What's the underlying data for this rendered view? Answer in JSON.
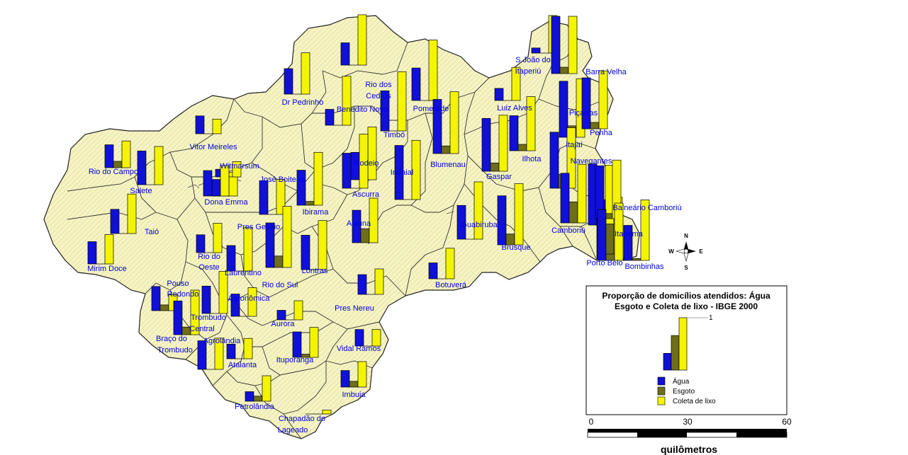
{
  "colors": {
    "agua": "#1010d8",
    "esgoto": "#6e6e1c",
    "lixo": "#f4f400",
    "land": "#f6f4c4",
    "border": "#222222",
    "label": "#0000e0"
  },
  "legend": {
    "title_line1": "Proporção de domicílios atendidos: Água",
    "title_line2": "Esgoto e Coleta de lixo - IBGE 2000",
    "max_label": "1",
    "items": [
      {
        "label": "Água",
        "color": "#1010d8"
      },
      {
        "label": "Esgoto",
        "color": "#6e6e1c"
      },
      {
        "label": "Coleta de lixo",
        "color": "#f4f400"
      }
    ],
    "sample": {
      "agua": 0.32,
      "esgoto": 0.66,
      "lixo": 1.0
    }
  },
  "scale": {
    "ticks": [
      "0",
      "30",
      "60"
    ],
    "unit": "quilômetros"
  },
  "compass": {
    "n": "N",
    "s": "S",
    "e": "E",
    "w": "W"
  },
  "municipalities": [
    {
      "name": "Dr Pedrinho",
      "agua": 0.4,
      "esgoto": 0.0,
      "lixo": 0.65
    },
    {
      "name": "Rio dos Cedros",
      "agua": 0.35,
      "esgoto": 0.0,
      "lixo": 0.79
    },
    {
      "name": "Benedito Novo",
      "agua": 0.25,
      "esgoto": 0.0,
      "lixo": 0.77
    },
    {
      "name": "Timbó",
      "agua": 0.63,
      "esgoto": 0.0,
      "lixo": 0.93
    },
    {
      "name": "Pomerode",
      "agua": 0.51,
      "esgoto": 0.0,
      "lixo": 0.95
    },
    {
      "name": "Blumenau",
      "agua": 0.85,
      "esgoto": 0.12,
      "lixo": 0.97
    },
    {
      "name": "Rodeio",
      "agua": 0.43,
      "esgoto": 0.0,
      "lixo": 0.83
    },
    {
      "name": "Indaial",
      "agua": 0.85,
      "esgoto": 0.0,
      "lixo": 0.93
    },
    {
      "name": "Ascurra",
      "agua": 0.55,
      "esgoto": 0.0,
      "lixo": 0.85
    },
    {
      "name": "Vitor Meireles",
      "agua": 0.28,
      "esgoto": 0.0,
      "lixo": 0.23
    },
    {
      "name": "Rio do Campo",
      "agua": 0.36,
      "esgoto": 0.1,
      "lixo": 0.42
    },
    {
      "name": "Salete",
      "agua": 0.53,
      "esgoto": 0.0,
      "lixo": 0.6
    },
    {
      "name": "Witmarsum",
      "agua": 0.26,
      "esgoto": 0.0,
      "lixo": 0.37
    },
    {
      "name": "José Boiteux",
      "agua": 0.12,
      "esgoto": 0.0,
      "lixo": 0.24
    },
    {
      "name": "Dona Emma",
      "agua": 0.4,
      "esgoto": 0.0,
      "lixo": 0.48
    },
    {
      "name": "Ibirama",
      "agua": 0.55,
      "esgoto": 0.06,
      "lixo": 0.83
    },
    {
      "name": "Taió",
      "agua": 0.38,
      "esgoto": 0.0,
      "lixo": 0.62
    },
    {
      "name": "Pres Getúlio",
      "agua": 0.53,
      "esgoto": 0.0,
      "lixo": 0.55
    },
    {
      "name": "Apiúna",
      "agua": 0.51,
      "esgoto": 0.22,
      "lixo": 0.7
    },
    {
      "name": "Mirim Doce",
      "agua": 0.35,
      "esgoto": 0.0,
      "lixo": 0.46
    },
    {
      "name": "Rio do Oeste",
      "agua": 0.28,
      "esgoto": 0.0,
      "lixo": 0.46
    },
    {
      "name": "Laurentino",
      "agua": 0.4,
      "esgoto": 0.0,
      "lixo": 0.68
    },
    {
      "name": "Rio do Sul",
      "agua": 0.7,
      "esgoto": 0.18,
      "lixo": 0.96
    },
    {
      "name": "Lontras",
      "agua": 0.54,
      "esgoto": 0.0,
      "lixo": 0.77
    },
    {
      "name": "Pouso Redondo",
      "agua": 0.38,
      "esgoto": 0.09,
      "lixo": 0.25
    },
    {
      "name": "Trombudo Central",
      "agua": 0.53,
      "esgoto": 0.12,
      "lixo": 0.7
    },
    {
      "name": "Agronômica",
      "agua": 0.35,
      "esgoto": 0.0,
      "lixo": 0.45
    },
    {
      "name": "Aurora",
      "agua": 0.15,
      "esgoto": 0.0,
      "lixo": 0.3
    },
    {
      "name": "Pres Nereu",
      "agua": 0.31,
      "esgoto": 0.0,
      "lixo": 0.4
    },
    {
      "name": "Braço do Trombudo",
      "agua": 0.43,
      "esgoto": 0.0,
      "lixo": 0.66
    },
    {
      "name": "Agrolândia",
      "agua": 0.45,
      "esgoto": 0.0,
      "lixo": 0.49
    },
    {
      "name": "Atalanta",
      "agua": 0.23,
      "esgoto": 0.0,
      "lixo": 0.32
    },
    {
      "name": "Ituporanga",
      "agua": 0.4,
      "esgoto": 0.05,
      "lixo": 0.47
    },
    {
      "name": "Vidal Ramos",
      "agua": 0.26,
      "esgoto": 0.0,
      "lixo": 0.26
    },
    {
      "name": "Imbuia",
      "agua": 0.26,
      "esgoto": 0.09,
      "lixo": 0.4
    },
    {
      "name": "Petrolândia",
      "agua": 0.15,
      "esgoto": 0.08,
      "lixo": 0.4
    },
    {
      "name": "Chapadão do Lageado",
      "agua": 0.0,
      "esgoto": 0.0,
      "lixo": 0.06
    },
    {
      "name": "Luiz Alves",
      "agua": 0.19,
      "esgoto": 0.0,
      "lixo": 0.52
    },
    {
      "name": "S João do Itaperiú",
      "agua": 0.08,
      "esgoto": 0.0,
      "lixo": 0.59
    },
    {
      "name": "Barra Velha",
      "agua": 0.9,
      "esgoto": 0.1,
      "lixo": 0.9
    },
    {
      "name": "Piçarras",
      "agua": 0.88,
      "esgoto": 0.18,
      "lixo": 0.92
    },
    {
      "name": "Penha",
      "agua": 0.8,
      "esgoto": 0.1,
      "lixo": 0.91
    },
    {
      "name": "Ilhota",
      "agua": 0.55,
      "esgoto": 0.1,
      "lixo": 0.85
    },
    {
      "name": "Gaspar",
      "agua": 0.83,
      "esgoto": 0.13,
      "lixo": 0.88
    },
    {
      "name": "Itajaí",
      "agua": 0.88,
      "esgoto": 0.22,
      "lixo": 0.95
    },
    {
      "name": "Navegantes",
      "agua": 0.96,
      "esgoto": 0.38,
      "lixo": 0.94
    },
    {
      "name": "Guabiruba",
      "agua": 0.53,
      "esgoto": 0.0,
      "lixo": 0.9
    },
    {
      "name": "Brusque",
      "agua": 0.77,
      "esgoto": 0.17,
      "lixo": 0.96
    },
    {
      "name": "Balneário Camboriú",
      "agua": 0.93,
      "esgoto": 0.55,
      "lixo": 0.97
    },
    {
      "name": "Camboriú",
      "agua": 0.78,
      "esgoto": 0.33,
      "lixo": 0.92
    },
    {
      "name": "Itapema",
      "agua": 0.83,
      "esgoto": 0.08,
      "lixo": 0.92
    },
    {
      "name": "Porto Belo",
      "agua": 0.8,
      "esgoto": 0.1,
      "lixo": 0.9
    },
    {
      "name": "Bombinhas",
      "agua": 0.55,
      "esgoto": 0.03,
      "lixo": 0.95
    },
    {
      "name": "Botuverá",
      "agua": 0.25,
      "esgoto": 0.0,
      "lixo": 0.48
    }
  ]
}
